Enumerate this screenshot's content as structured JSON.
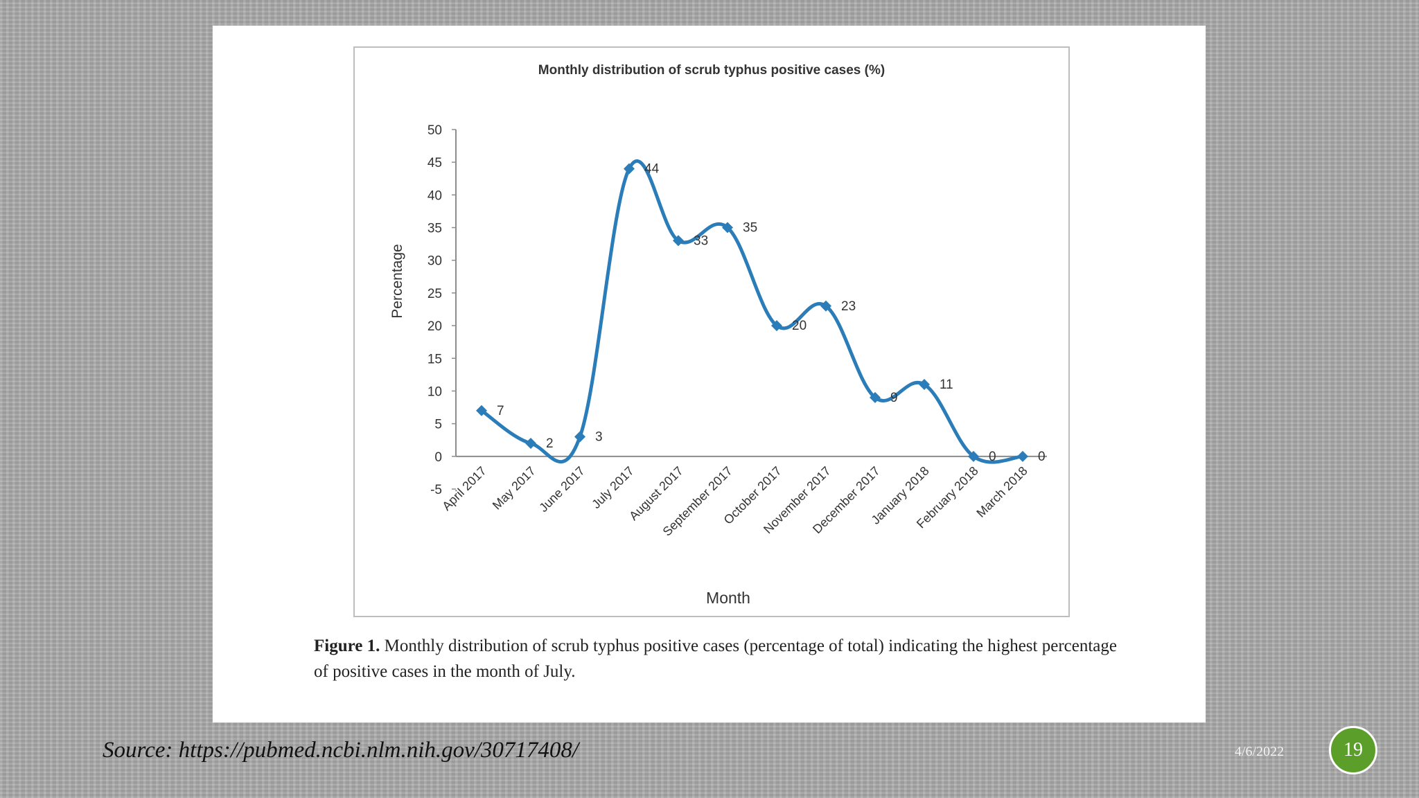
{
  "slide": {
    "source": "Source: https://pubmed.ncbi.nlm.nih.gov/30717408/",
    "date": "4/6/2022",
    "page_number": "19"
  },
  "caption": {
    "figure_label": "Figure 1.",
    "text": " Monthly distribution of scrub typhus positive cases (percentage of total) indicating the highest percentage of positive cases in the month of July."
  },
  "colors": {
    "line": "#2a7db8",
    "axis": "#8c8c8c"
  },
  "chart_data": {
    "type": "line",
    "title": "Monthly distribution of scrub typhus positive cases (%)",
    "xlabel": "Month",
    "ylabel": "Percentage",
    "ylim": [
      -5,
      50
    ],
    "yticks": [
      -5,
      0,
      5,
      10,
      15,
      20,
      25,
      30,
      35,
      40,
      45,
      50
    ],
    "grid": false,
    "categories": [
      "April 2017",
      "May 2017",
      "June 2017",
      "July 2017",
      "August 2017",
      "September 2017",
      "October 2017",
      "November 2017",
      "December 2017",
      "January 2018",
      "February 2018",
      "March 2018"
    ],
    "values": [
      7,
      2,
      3,
      44,
      33,
      35,
      20,
      23,
      9,
      11,
      0,
      0
    ]
  }
}
